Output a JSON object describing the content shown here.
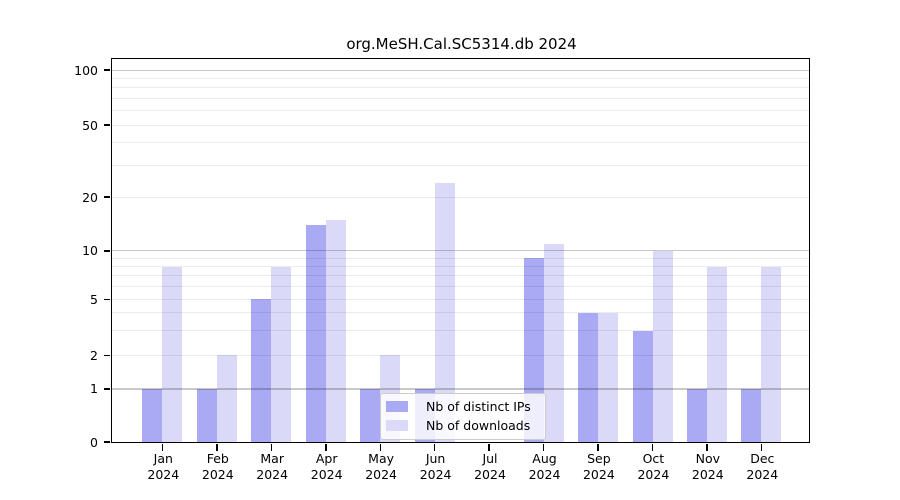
{
  "title": "org.MeSH.Cal.SC5314.db 2024",
  "chart_data": {
    "type": "bar",
    "title": "org.MeSH.Cal.SC5314.db 2024",
    "categories": [
      "Jan 2024",
      "Feb 2024",
      "Mar 2024",
      "Apr 2024",
      "May 2024",
      "Jun 2024",
      "Jul 2024",
      "Aug 2024",
      "Sep 2024",
      "Oct 2024",
      "Nov 2024",
      "Dec 2024"
    ],
    "series": [
      {
        "name": "Nb of distinct IPs",
        "key": "ips",
        "color": "#aaaaf4",
        "values": [
          1,
          1,
          5,
          14,
          1,
          1,
          0,
          9,
          4,
          3,
          1,
          1
        ]
      },
      {
        "name": "Nb of downloads",
        "key": "downloads",
        "color": "#dadaf8",
        "values": [
          8,
          2,
          8,
          15,
          2,
          24,
          0,
          11,
          4,
          10,
          8,
          8
        ]
      }
    ],
    "xlabel": "",
    "ylabel": "",
    "yscale": "log1p",
    "ylim": [
      0,
      115
    ],
    "yticks": [
      0,
      1,
      2,
      5,
      10,
      20,
      50,
      100
    ],
    "grid_major": [
      1,
      10,
      100
    ],
    "grid_minor": [
      2,
      3,
      4,
      5,
      6,
      7,
      8,
      9,
      20,
      30,
      40,
      50,
      60,
      70,
      80,
      90
    ],
    "grid": "on, drawn over bars",
    "legend_position": "inside lower-center of plot"
  },
  "legend": {
    "items": [
      {
        "label": "Nb of distinct IPs",
        "color": "#aaaaf4"
      },
      {
        "label": "Nb of downloads",
        "color": "#dadaf8"
      }
    ]
  },
  "colors": {
    "background": "#ffffff",
    "axis": "#000000",
    "text": "#000000",
    "bar_ips": "#aaaaf4",
    "bar_downloads": "#dadaf8",
    "grid_major": "rgba(0,0,0,0.21)",
    "grid_minor": "rgba(0,0,0,0.08)",
    "legend_border": "#cccccc",
    "legend_bg": "rgba(255,255,255,0.8)"
  }
}
